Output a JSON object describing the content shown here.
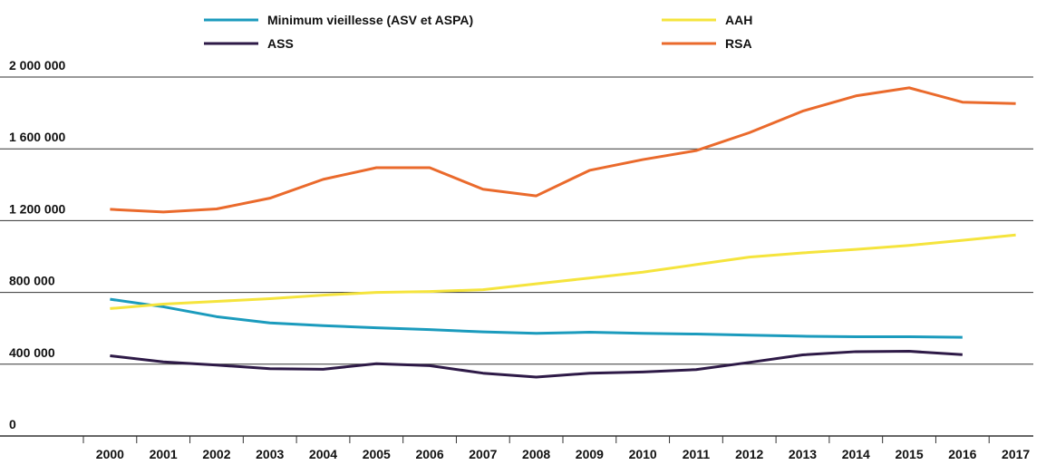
{
  "chart_data": {
    "type": "line",
    "categories": [
      "2000",
      "2001",
      "2002",
      "2003",
      "2004",
      "2005",
      "2006",
      "2007",
      "2008",
      "2009",
      "2010",
      "2011",
      "2012",
      "2013",
      "2014",
      "2015",
      "2016",
      "2017"
    ],
    "series": [
      {
        "name": "Minimum vieillesse (ASV et ASPA)",
        "color": "#1b9bbd",
        "values": [
          762000,
          720000,
          665000,
          630000,
          615000,
          603000,
          593000,
          580000,
          572000,
          578000,
          572000,
          568000,
          562000,
          556000,
          553000,
          553000,
          550000,
          null
        ]
      },
      {
        "name": "AAH",
        "color": "#f5e43d",
        "values": [
          710000,
          735000,
          750000,
          765000,
          785000,
          800000,
          805000,
          815000,
          848000,
          880000,
          913000,
          955000,
          997000,
          1020000,
          1040000,
          1062000,
          1090000,
          1120000
        ]
      },
      {
        "name": "ASS",
        "color": "#2e1a47",
        "values": [
          447000,
          413000,
          395000,
          375000,
          372000,
          403000,
          392000,
          350000,
          328000,
          350000,
          357000,
          370000,
          410000,
          452000,
          470000,
          472000,
          453000,
          null
        ]
      },
      {
        "name": "RSA",
        "color": "#ea6a2c",
        "values": [
          1263000,
          1248000,
          1265000,
          1325000,
          1430000,
          1495000,
          1495000,
          1375000,
          1338000,
          1480000,
          1540000,
          1590000,
          1690000,
          1810000,
          1895000,
          1940000,
          1860000,
          1852000
        ]
      }
    ],
    "ylim": [
      0,
      2000000
    ],
    "yticks": [
      0,
      {
        "value": 400000,
        "label": "400 000"
      },
      {
        "value": 800000,
        "label": "800 000"
      },
      {
        "value": 1200000,
        "label": "1 200 000"
      },
      {
        "value": 1600000,
        "label": "1 600 000"
      },
      {
        "value": 2000000,
        "label": "2 000 000"
      }
    ],
    "grid": true,
    "legend_position": "top"
  }
}
